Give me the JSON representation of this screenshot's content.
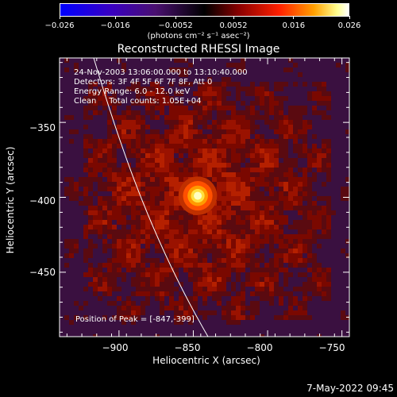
{
  "chart_data": {
    "type": "heatmap",
    "title": "Reconstructed RHESSI Image",
    "xlabel": "Heliocentric X (arcsec)",
    "ylabel": "Heliocentric Y (arcsec)",
    "xlim": [
      -940,
      -745
    ],
    "ylim": [
      -493,
      -307
    ],
    "x_ticks": [
      -900,
      -850,
      -800,
      -750
    ],
    "x_tick_labels": [
      "−900",
      "−850",
      "−800",
      "−750"
    ],
    "y_ticks": [
      -350,
      -400,
      -450
    ],
    "y_tick_labels": [
      "−350",
      "−400",
      "−450"
    ],
    "peak": {
      "x": -847,
      "y": -399
    },
    "colorbar": {
      "range": [
        -0.026,
        0.026
      ],
      "ticks": [
        -0.026,
        -0.016,
        -0.0052,
        0.0052,
        0.016,
        0.026
      ],
      "tick_labels": [
        "−0.026",
        "−0.016",
        "−0.0052",
        "0.0052",
        "0.016",
        "0.026"
      ],
      "units": "(photons cm⁻² s⁻¹ asec⁻²)",
      "colors": [
        "#0000ff",
        "#3a00b0",
        "#5a0a5a",
        "#000000",
        "#8a0000",
        "#ff3000",
        "#ffa000",
        "#ffff80",
        "#ffffff"
      ]
    },
    "annotations": {
      "time_range": "24-Nov-2003 13:06:00.000 to 13:10:40.000",
      "detectors": "Detectors: 3F 4F 5F 6F 7F 8F, Att 0",
      "energy": "Energy Range: 6.0 - 12.0 keV",
      "clean": "Clean     Total counts: 1.05E+04",
      "peak_label": "Position of Peak = [-847,-399]"
    }
  },
  "footer": {
    "date": "7-May-2022 09:45"
  }
}
